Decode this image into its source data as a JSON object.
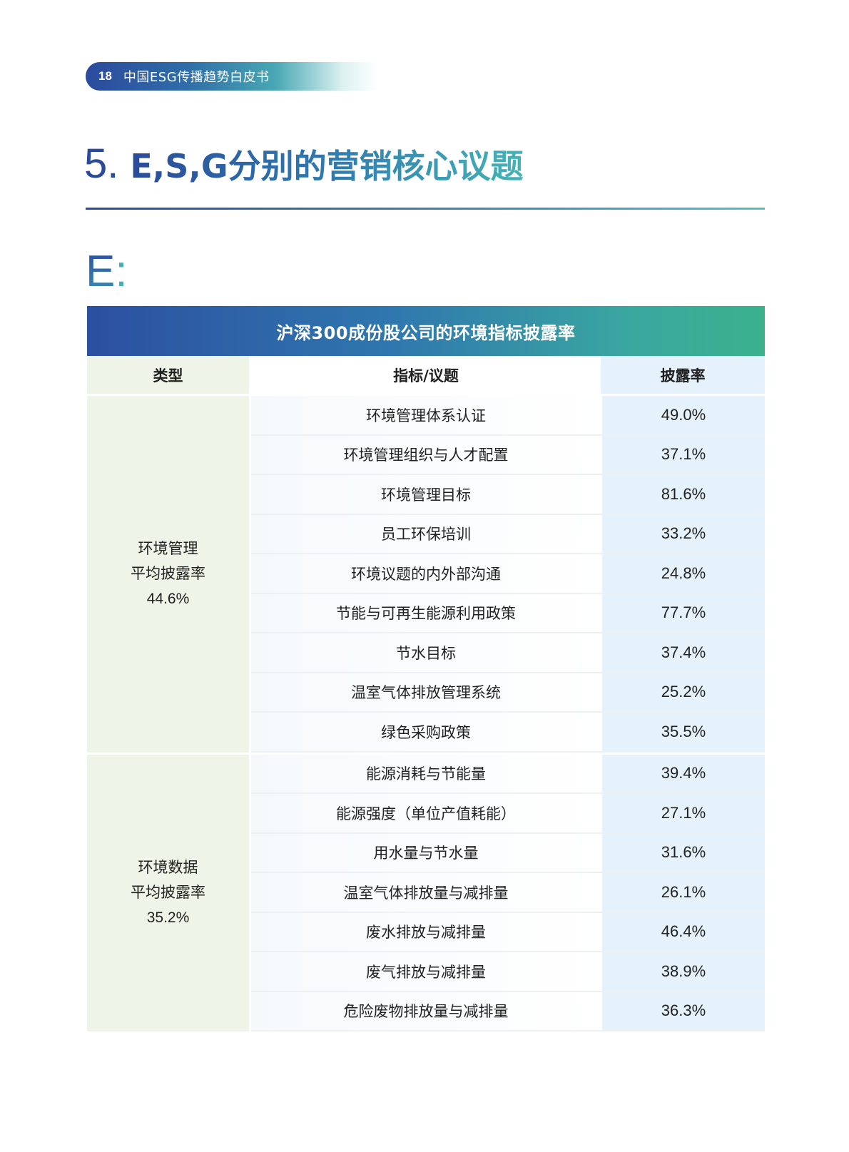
{
  "header": {
    "page_number": "18",
    "doc_title": "中国ESG传播趋势白皮书"
  },
  "section": {
    "number": "5.",
    "title": "E,S,G分别的营销核心议题"
  },
  "subsection": {
    "letter": "E",
    "colon": ":"
  },
  "table": {
    "title": "沪深300成份股公司的环境指标披露率",
    "headers": {
      "type": "类型",
      "indicator": "指标/议题",
      "rate": "披露率"
    },
    "groups": [
      {
        "type_line1": "环境管理",
        "type_line2": "平均披露率",
        "type_avg": "44.6%",
        "rows": [
          {
            "indicator": "环境管理体系认证",
            "rate": "49.0%"
          },
          {
            "indicator": "环境管理组织与人才配置",
            "rate": "37.1%"
          },
          {
            "indicator": "环境管理目标",
            "rate": "81.6%"
          },
          {
            "indicator": "员工环保培训",
            "rate": "33.2%"
          },
          {
            "indicator": "环境议题的内外部沟通",
            "rate": "24.8%"
          },
          {
            "indicator": "节能与可再生能源利用政策",
            "rate": "77.7%"
          },
          {
            "indicator": "节水目标",
            "rate": "37.4%"
          },
          {
            "indicator": "温室气体排放管理系统",
            "rate": "25.2%"
          },
          {
            "indicator": "绿色采购政策",
            "rate": "35.5%"
          }
        ]
      },
      {
        "type_line1": "环境数据",
        "type_line2": "平均披露率",
        "type_avg": "35.2%",
        "rows": [
          {
            "indicator": "能源消耗与节能量",
            "rate": "39.4%"
          },
          {
            "indicator": "能源强度（单位产值耗能）",
            "rate": "27.1%"
          },
          {
            "indicator": "用水量与节水量",
            "rate": "31.6%"
          },
          {
            "indicator": "温室气体排放量与减排量",
            "rate": "26.1%"
          },
          {
            "indicator": "废水排放与减排量",
            "rate": "46.4%"
          },
          {
            "indicator": "废气排放与减排量",
            "rate": "38.9%"
          },
          {
            "indicator": "危险废物排放量与减排量",
            "rate": "36.3%"
          }
        ]
      }
    ]
  }
}
